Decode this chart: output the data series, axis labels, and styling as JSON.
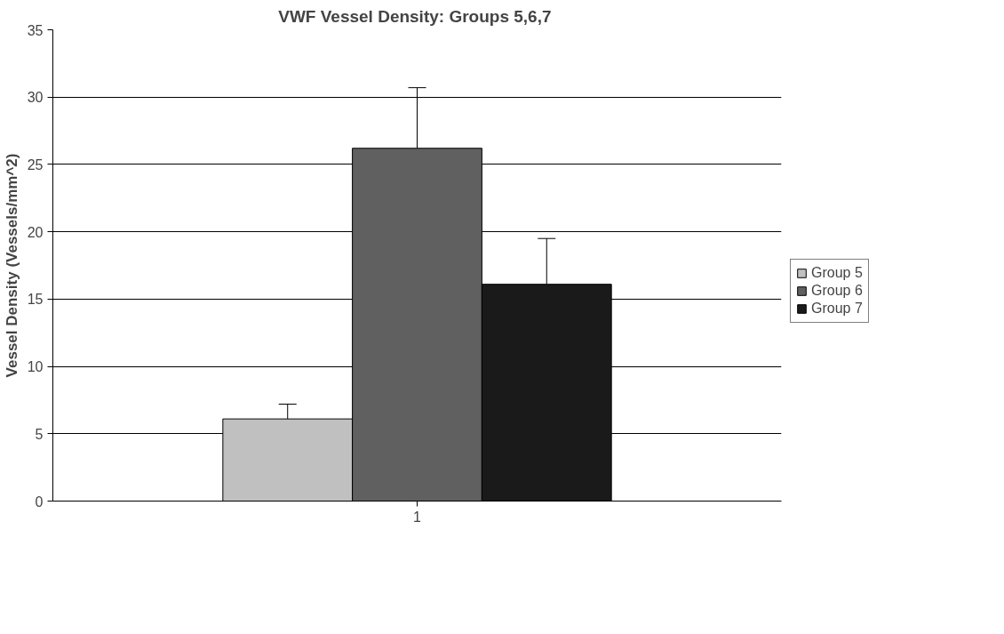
{
  "chart_data": {
    "type": "bar",
    "title": "VWF Vessel Density:  Groups 5,6,7",
    "ylabel": "Vessel Density (Vessels/mm^2)",
    "categories": [
      "1"
    ],
    "series": [
      {
        "name": "Group 5",
        "color": "#c0c0c0",
        "values": [
          6.1
        ],
        "errors": [
          [
            6.1,
            7.2
          ]
        ]
      },
      {
        "name": "Group 6",
        "color": "#606060",
        "values": [
          26.2
        ],
        "errors": [
          [
            26.2,
            30.7
          ]
        ]
      },
      {
        "name": "Group 7",
        "color": "#1a1a1a",
        "values": [
          16.1
        ],
        "errors": [
          [
            16.1,
            19.5
          ]
        ]
      }
    ],
    "ylim": [
      0,
      35
    ],
    "yticks": [
      0,
      5,
      10,
      15,
      20,
      25,
      30,
      35
    ],
    "grid": "y",
    "legend": "right"
  }
}
